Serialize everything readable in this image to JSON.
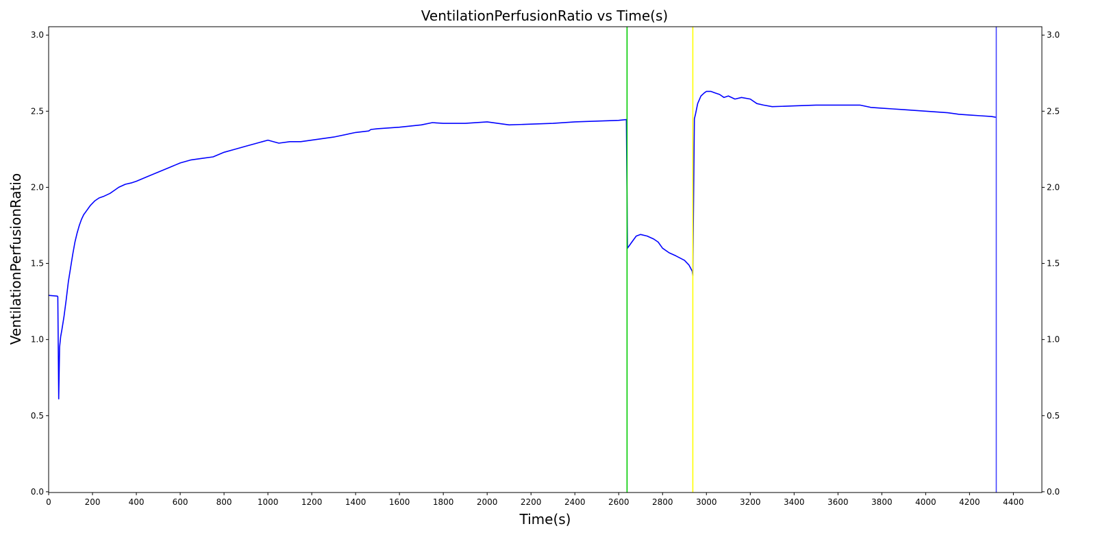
{
  "chart_data": {
    "type": "line",
    "title": "VentilationPerfusionRatio vs Time(s)",
    "xlabel": "Time(s)",
    "ylabel": "VentilationPerfusionRatio",
    "xlim": [
      0,
      4530
    ],
    "ylim": [
      -0.005,
      3.055
    ],
    "x_ticks": [
      0,
      200,
      400,
      600,
      800,
      1000,
      1200,
      1400,
      1600,
      1800,
      2000,
      2200,
      2400,
      2600,
      2800,
      3000,
      3200,
      3400,
      3600,
      3800,
      4000,
      4200,
      4400
    ],
    "y_ticks": [
      0.0,
      0.5,
      1.0,
      1.5,
      2.0,
      2.5,
      3.0
    ],
    "y_ticks_right": [
      0.0,
      0.5,
      1.0,
      1.5,
      2.0,
      2.5,
      3.0
    ],
    "grid": false,
    "legend": false,
    "series": [
      {
        "color": "#0000ff",
        "x": [
          0,
          40,
          42,
          46,
          50,
          55,
          60,
          70,
          80,
          90,
          100,
          110,
          120,
          130,
          140,
          150,
          160,
          175,
          190,
          210,
          230,
          250,
          280,
          300,
          320,
          350,
          380,
          400,
          450,
          500,
          550,
          600,
          650,
          700,
          750,
          800,
          850,
          900,
          950,
          1000,
          1050,
          1100,
          1150,
          1200,
          1300,
          1400,
          1460,
          1470,
          1500,
          1600,
          1700,
          1750,
          1800,
          1900,
          2000,
          2100,
          2200,
          2300,
          2400,
          2500,
          2600,
          2635,
          2640,
          2650,
          2660,
          2670,
          2680,
          2700,
          2730,
          2760,
          2780,
          2800,
          2830,
          2860,
          2900,
          2920,
          2935,
          2938,
          2945,
          2950,
          2960,
          2975,
          2990,
          3000,
          3020,
          3040,
          3060,
          3080,
          3100,
          3130,
          3160,
          3200,
          3230,
          3260,
          3300,
          3400,
          3500,
          3600,
          3700,
          3750,
          3800,
          3850,
          3900,
          3950,
          4000,
          4050,
          4100,
          4150,
          4200,
          4250,
          4300,
          4320
        ],
        "y": [
          1.29,
          1.285,
          1.28,
          0.61,
          0.95,
          1.02,
          1.06,
          1.15,
          1.26,
          1.38,
          1.47,
          1.56,
          1.64,
          1.7,
          1.75,
          1.79,
          1.82,
          1.85,
          1.88,
          1.91,
          1.93,
          1.94,
          1.96,
          1.98,
          2.0,
          2.02,
          2.03,
          2.04,
          2.07,
          2.1,
          2.13,
          2.16,
          2.18,
          2.19,
          2.2,
          2.23,
          2.25,
          2.27,
          2.29,
          2.31,
          2.29,
          2.3,
          2.3,
          2.31,
          2.33,
          2.36,
          2.37,
          2.38,
          2.385,
          2.395,
          2.41,
          2.425,
          2.42,
          2.42,
          2.43,
          2.41,
          2.415,
          2.42,
          2.43,
          2.435,
          2.44,
          2.445,
          1.6,
          1.62,
          1.64,
          1.66,
          1.68,
          1.69,
          1.68,
          1.66,
          1.64,
          1.6,
          1.57,
          1.55,
          1.52,
          1.49,
          1.45,
          1.42,
          2.45,
          2.48,
          2.55,
          2.6,
          2.62,
          2.63,
          2.63,
          2.62,
          2.61,
          2.59,
          2.6,
          2.58,
          2.59,
          2.58,
          2.55,
          2.54,
          2.53,
          2.535,
          2.54,
          2.54,
          2.54,
          2.525,
          2.52,
          2.515,
          2.51,
          2.505,
          2.5,
          2.495,
          2.49,
          2.48,
          2.475,
          2.47,
          2.465,
          2.46
        ]
      }
    ],
    "vertical_lines": [
      {
        "x": 2638,
        "color": "#00cc00"
      },
      {
        "x": 2938,
        "color": "#ffff00"
      },
      {
        "x": 4322,
        "color": "#4444ff"
      }
    ]
  }
}
